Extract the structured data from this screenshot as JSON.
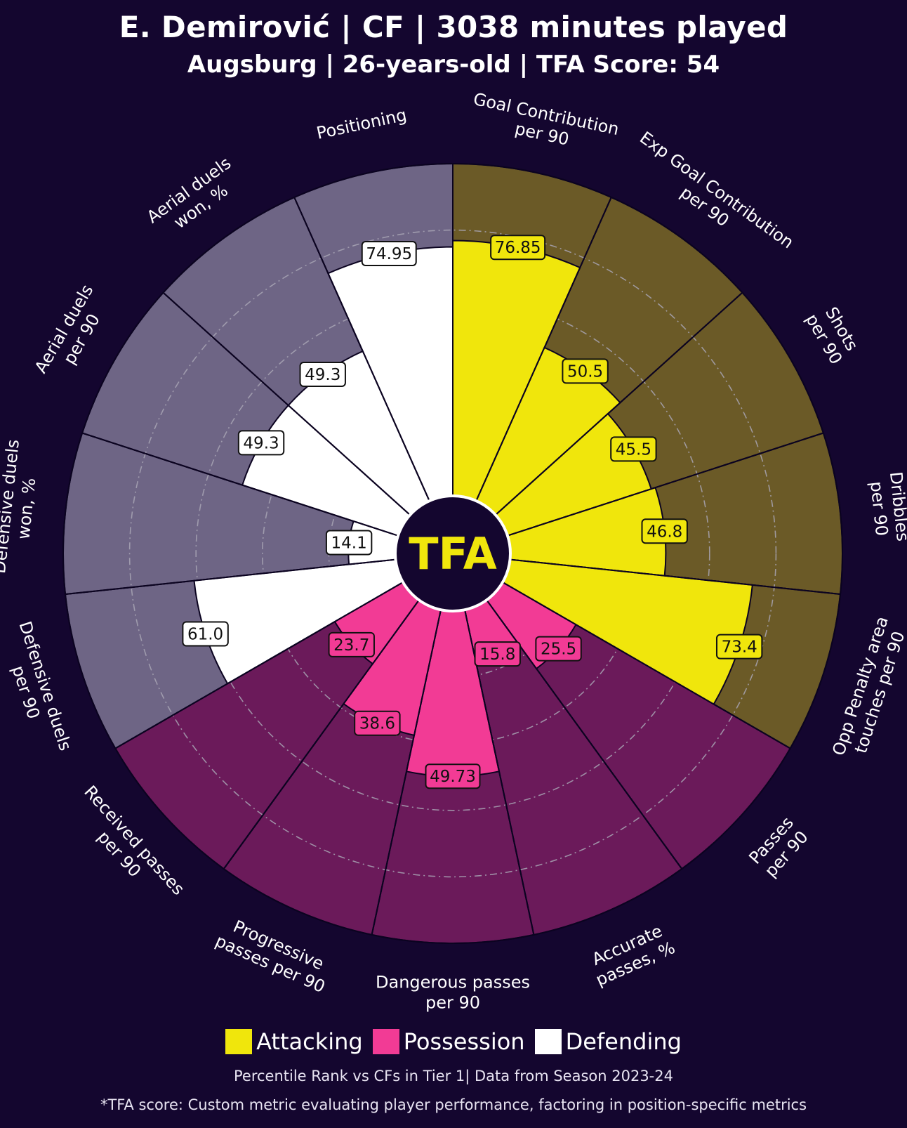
{
  "header": {
    "title": "E. Demirović | CF | 3038 minutes played",
    "subtitle": "Augsburg | 26-years-old | TFA Score: 54"
  },
  "center_logo": {
    "text": "TFA",
    "color": "#f0e60c"
  },
  "colors": {
    "background": "#14062f",
    "Attacking": "#f0e60c",
    "Attacking_bg": "#6b5a27",
    "Possession": "#f23b95",
    "Possession_bg": "#6b1a5a",
    "Defending": "#ffffff",
    "Defending_bg": "#6e6585"
  },
  "legend": {
    "items": [
      {
        "label": "Attacking",
        "color": "#f0e60c"
      },
      {
        "label": "Possession",
        "color": "#f23b95"
      },
      {
        "label": "Defending",
        "color": "#ffffff"
      }
    ]
  },
  "footer": {
    "note": "Percentile Rank vs CFs in Tier 1| Data from Season 2023-24",
    "score_note": "*TFA score: Custom metric evaluating player performance, factoring in position-specific metrics"
  },
  "chart_data": {
    "type": "pizza",
    "value_unit": "percentile",
    "range": [
      0,
      100
    ],
    "gridlines": [
      20,
      40,
      60,
      80
    ],
    "direction": "clockwise from top",
    "slices": [
      {
        "label": [
          "Goal Contribution",
          "per 90"
        ],
        "value": 76.85,
        "display": "76.85",
        "group": "Attacking"
      },
      {
        "label": [
          "Exp Goal Contribution",
          "per 90"
        ],
        "value": 50.5,
        "display": "50.5",
        "group": "Attacking"
      },
      {
        "label": [
          "Shots",
          "per 90"
        ],
        "value": 45.5,
        "display": "45.5",
        "group": "Attacking"
      },
      {
        "label": [
          "Dribbles",
          "per 90"
        ],
        "value": 46.8,
        "display": "46.8",
        "group": "Attacking"
      },
      {
        "label": [
          "Opp Penalty area",
          "touches per 90"
        ],
        "value": 73.4,
        "display": "73.4",
        "group": "Attacking"
      },
      {
        "label": [
          "Passes",
          "per 90"
        ],
        "value": 25.5,
        "display": "25.5",
        "group": "Possession"
      },
      {
        "label": [
          "Accurate",
          "passes, %"
        ],
        "value": 15.8,
        "display": "15.8",
        "group": "Possession"
      },
      {
        "label": [
          "Dangerous passes",
          "per 90"
        ],
        "value": 49.73,
        "display": "49.73",
        "group": "Possession"
      },
      {
        "label": [
          "Progressive",
          "passes per 90"
        ],
        "value": 38.6,
        "display": "38.6",
        "group": "Possession"
      },
      {
        "label": [
          "Received passes",
          "per 90"
        ],
        "value": 23.7,
        "display": "23.7",
        "group": "Possession"
      },
      {
        "label": [
          "Defensive duels",
          "per 90"
        ],
        "value": 61.0,
        "display": "61.0",
        "group": "Defending"
      },
      {
        "label": [
          "Defensive duels",
          "won, %"
        ],
        "value": 14.1,
        "display": "14.1",
        "group": "Defending"
      },
      {
        "label": [
          "Aerial duels",
          "per 90"
        ],
        "value": 49.3,
        "display": "49.3",
        "group": "Defending"
      },
      {
        "label": [
          "Aerial duels",
          "won, %"
        ],
        "value": 49.3,
        "display": "49.3",
        "group": "Defending"
      },
      {
        "label": [
          "Positioning"
        ],
        "value": 74.95,
        "display": "74.95",
        "group": "Defending"
      }
    ]
  }
}
